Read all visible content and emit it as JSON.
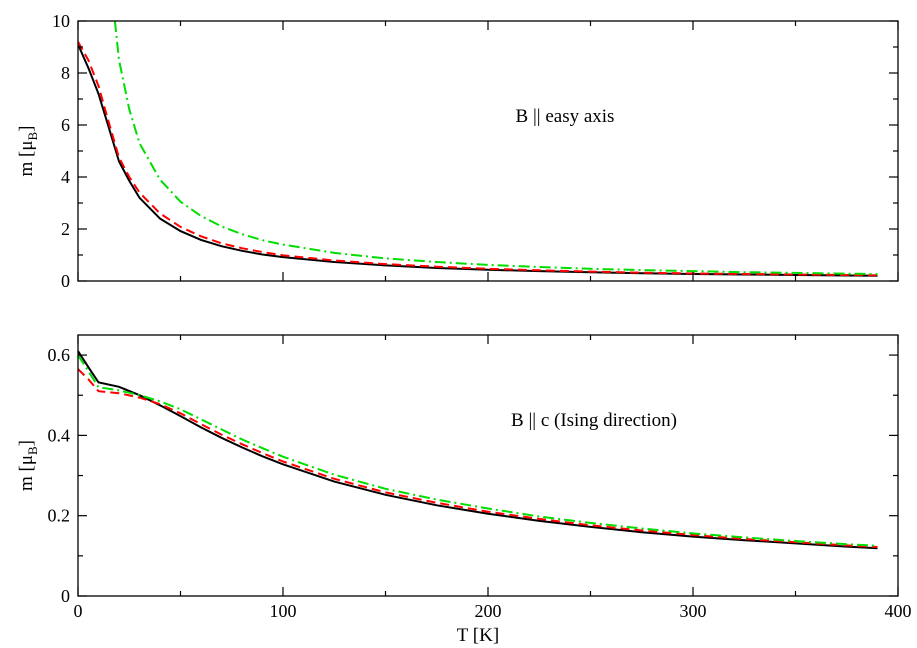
{
  "chart_data": [
    {
      "type": "line",
      "annotation": "B || easy axis",
      "ylabel": "m [μB]",
      "xlabel": "",
      "xlim": [
        0,
        400
      ],
      "ylim": [
        0,
        10
      ],
      "xticks": [
        0,
        100,
        200,
        300,
        400
      ],
      "yticks": [
        0,
        2,
        4,
        6,
        8,
        10
      ],
      "xtick_labels": [],
      "ytick_labels": [
        "0",
        "2",
        "4",
        "6",
        "8",
        "10"
      ],
      "grid": false,
      "series": [
        {
          "color": "#000000",
          "dash": "solid",
          "x": [
            0,
            5,
            10,
            15,
            20,
            25,
            30,
            40,
            50,
            60,
            70,
            80,
            90,
            100,
            125,
            150,
            175,
            200,
            225,
            250,
            275,
            300,
            325,
            350,
            375,
            390
          ],
          "y": [
            9.1,
            8.2,
            7.2,
            5.9,
            4.6,
            3.85,
            3.2,
            2.4,
            1.92,
            1.58,
            1.34,
            1.16,
            1.02,
            0.92,
            0.73,
            0.6,
            0.5,
            0.43,
            0.38,
            0.34,
            0.3,
            0.27,
            0.25,
            0.23,
            0.21,
            0.2
          ]
        },
        {
          "color": "#ff0000",
          "dash": "dashed",
          "x": [
            0,
            5,
            10,
            15,
            20,
            25,
            30,
            40,
            50,
            60,
            70,
            80,
            90,
            100,
            125,
            150,
            175,
            200,
            225,
            250,
            275,
            300,
            325,
            350,
            375,
            390
          ],
          "y": [
            9.2,
            8.5,
            7.5,
            6.1,
            4.75,
            4.0,
            3.4,
            2.6,
            2.08,
            1.72,
            1.45,
            1.26,
            1.11,
            0.99,
            0.79,
            0.65,
            0.55,
            0.47,
            0.41,
            0.36,
            0.32,
            0.29,
            0.27,
            0.25,
            0.23,
            0.22
          ]
        },
        {
          "color": "#00dd00",
          "dash": "dashdot",
          "x": [
            18,
            20,
            25,
            30,
            40,
            50,
            60,
            70,
            80,
            90,
            100,
            125,
            150,
            175,
            200,
            225,
            250,
            275,
            300,
            325,
            350,
            375,
            390
          ],
          "y": [
            10.0,
            8.5,
            6.6,
            5.3,
            3.9,
            3.05,
            2.5,
            2.1,
            1.8,
            1.57,
            1.4,
            1.08,
            0.87,
            0.73,
            0.62,
            0.54,
            0.47,
            0.42,
            0.38,
            0.34,
            0.31,
            0.28,
            0.27
          ]
        }
      ]
    },
    {
      "type": "line",
      "annotation": "B || c (Ising direction)",
      "ylabel": "m [μB]",
      "xlabel": "T [K]",
      "xlim": [
        0,
        400
      ],
      "ylim": [
        0,
        0.65
      ],
      "xticks": [
        0,
        100,
        200,
        300,
        400
      ],
      "yticks": [
        0,
        0.2,
        0.4,
        0.6
      ],
      "xtick_labels": [
        "0",
        "100",
        "200",
        "300",
        "400"
      ],
      "ytick_labels": [
        "0",
        "0.2",
        "0.4",
        "0.6"
      ],
      "grid": false,
      "series": [
        {
          "color": "#000000",
          "dash": "solid",
          "x": [
            0,
            5,
            10,
            20,
            30,
            40,
            50,
            60,
            70,
            80,
            90,
            100,
            125,
            150,
            175,
            200,
            225,
            250,
            275,
            300,
            325,
            350,
            375,
            390
          ],
          "y": [
            0.61,
            0.57,
            0.532,
            0.521,
            0.5,
            0.475,
            0.448,
            0.42,
            0.394,
            0.37,
            0.348,
            0.328,
            0.285,
            0.252,
            0.226,
            0.205,
            0.187,
            0.172,
            0.159,
            0.148,
            0.139,
            0.131,
            0.123,
            0.119
          ]
        },
        {
          "color": "#ff0000",
          "dash": "dashed",
          "x": [
            0,
            5,
            10,
            20,
            30,
            40,
            50,
            60,
            70,
            80,
            90,
            100,
            125,
            150,
            175,
            200,
            225,
            250,
            275,
            300,
            325,
            350,
            375,
            390
          ],
          "y": [
            0.565,
            0.54,
            0.51,
            0.505,
            0.494,
            0.478,
            0.455,
            0.428,
            0.402,
            0.378,
            0.356,
            0.335,
            0.292,
            0.258,
            0.232,
            0.21,
            0.192,
            0.176,
            0.163,
            0.152,
            0.142,
            0.134,
            0.126,
            0.122
          ]
        },
        {
          "color": "#00dd00",
          "dash": "dashdot",
          "x": [
            0,
            5,
            10,
            20,
            30,
            40,
            50,
            60,
            70,
            80,
            90,
            100,
            125,
            150,
            175,
            200,
            225,
            250,
            275,
            300,
            325,
            350,
            375,
            390
          ],
          "y": [
            0.6,
            0.56,
            0.52,
            0.512,
            0.5,
            0.485,
            0.465,
            0.44,
            0.415,
            0.39,
            0.368,
            0.347,
            0.302,
            0.267,
            0.24,
            0.218,
            0.198,
            0.182,
            0.168,
            0.156,
            0.146,
            0.137,
            0.129,
            0.125
          ]
        }
      ]
    }
  ]
}
